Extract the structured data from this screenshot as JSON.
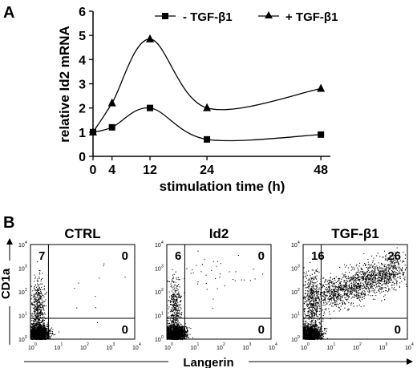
{
  "panel_a": {
    "label": "A"
  },
  "panel_b": {
    "label": "B"
  },
  "chart_data": [
    {
      "type": "line",
      "xlabel": "stimulation time (h)",
      "ylabel": "relative Id2 mRNA",
      "xlim": [
        0,
        50
      ],
      "ylim": [
        0,
        6
      ],
      "x_ticks": [
        0,
        4,
        12,
        24,
        48
      ],
      "y_ticks": [
        0,
        1,
        2,
        3,
        4,
        5,
        6
      ],
      "legend_position": "top",
      "series": [
        {
          "name": "- TGF-β1",
          "marker": "square",
          "x": [
            0,
            4,
            12,
            24,
            48
          ],
          "values": [
            1.0,
            1.2,
            2.0,
            0.7,
            0.9
          ]
        },
        {
          "name": "+ TGF-β1",
          "marker": "triangle",
          "x": [
            0,
            4,
            12,
            24,
            48
          ],
          "values": [
            1.0,
            2.2,
            4.85,
            2.0,
            2.8
          ]
        }
      ]
    },
    {
      "type": "scatter",
      "title": "CTRL",
      "xlabel": "Langerin",
      "ylabel": "CD1a",
      "scale": "log",
      "quadrants": {
        "upper_left": "7",
        "upper_right": "0",
        "lower_right": "0"
      }
    },
    {
      "type": "scatter",
      "title": "Id2",
      "xlabel": "Langerin",
      "ylabel": "CD1a",
      "scale": "log",
      "quadrants": {
        "upper_left": "6",
        "upper_right": "0",
        "lower_right": "0"
      }
    },
    {
      "type": "scatter",
      "title": "TGF-β1",
      "xlabel": "Langerin",
      "ylabel": "CD1a",
      "scale": "log",
      "quadrants": {
        "upper_left": "16",
        "upper_right": "26",
        "lower_right": "0"
      }
    }
  ],
  "facs_ticks": [
    "10",
    "10",
    "10",
    "10",
    "10"
  ],
  "facs_tick_exponents": [
    "0",
    "1",
    "2",
    "3",
    "4"
  ],
  "colors": {
    "ink": "#000000",
    "background": "#ffffff"
  }
}
